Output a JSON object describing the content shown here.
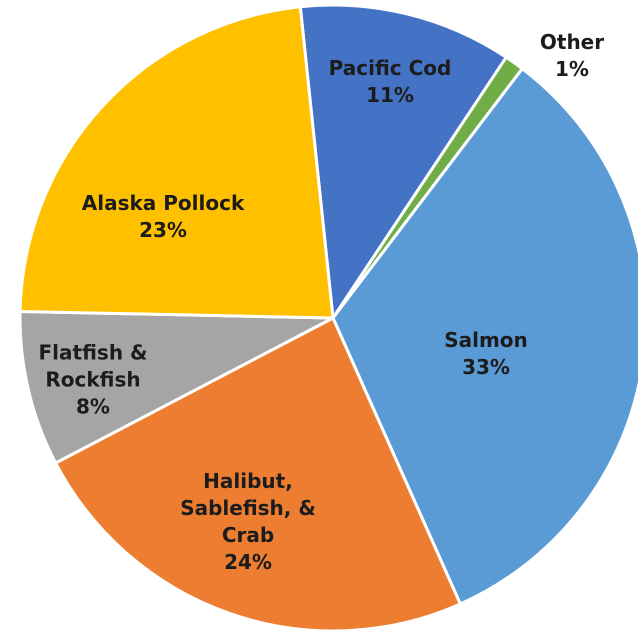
{
  "chart_data": {
    "type": "pie",
    "categories": [
      "Pacific Cod",
      "Other",
      "Salmon",
      "Halibut, Sablefish, & Crab",
      "Flatfish & Rockfish",
      "Alaska Pollock"
    ],
    "values": [
      11,
      1,
      33,
      24,
      8,
      23
    ],
    "value_labels": [
      "11%",
      "1%",
      "33%",
      "24%",
      "8%",
      "23%"
    ],
    "colors": [
      "#4472c4",
      "#70ad47",
      "#5b9bd5",
      "#ed7d31",
      "#a5a5a5",
      "#ffc000"
    ]
  }
}
